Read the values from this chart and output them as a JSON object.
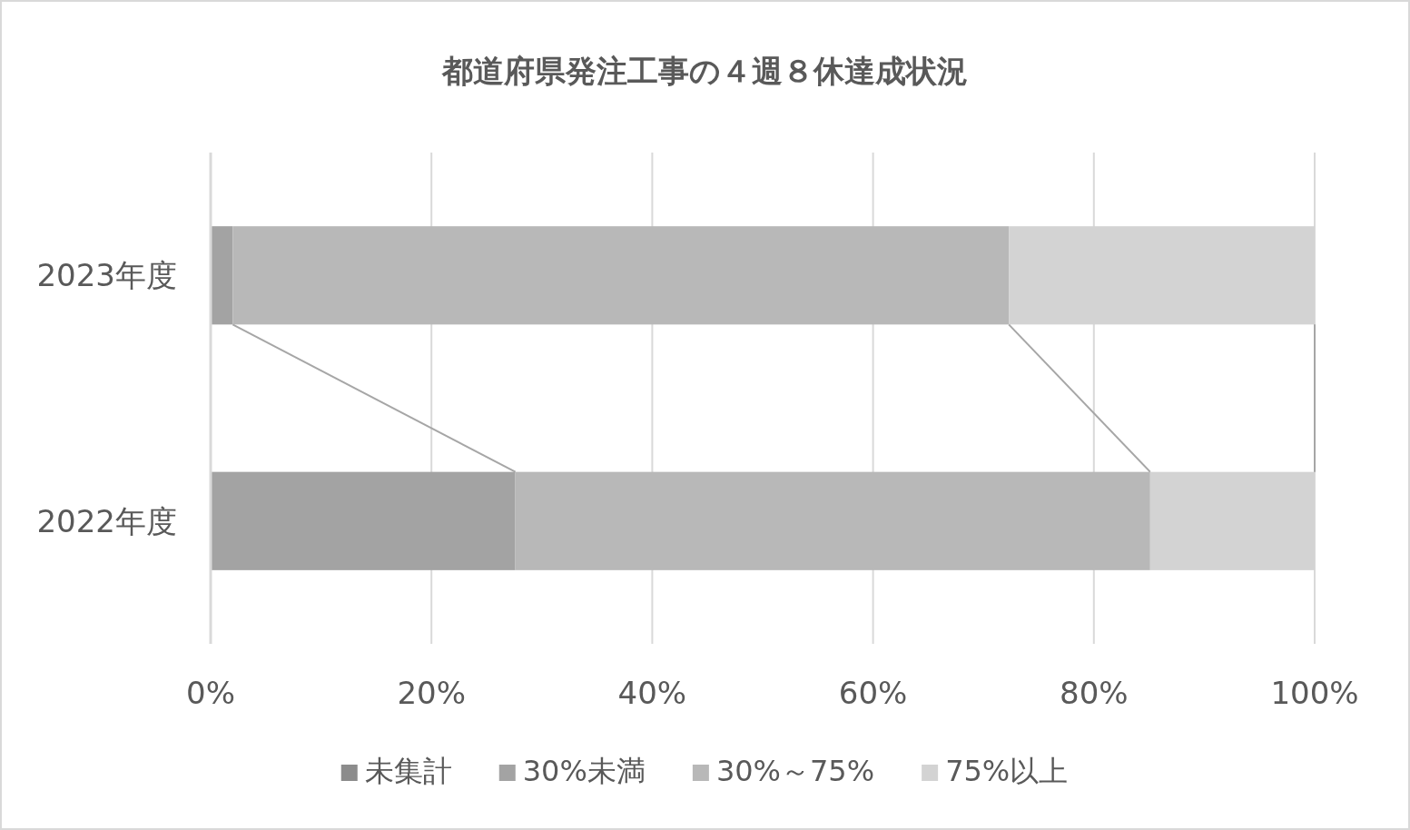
{
  "chart_data": {
    "type": "bar",
    "orientation": "horizontal",
    "stacked": true,
    "title": "都道府県発注工事の４週８休達成状況",
    "categories": [
      "2023年度",
      "2022年度"
    ],
    "series": [
      {
        "name": "未集計",
        "color": "#8c8c8c",
        "values": [
          0,
          0
        ]
      },
      {
        "name": "30%未満",
        "color": "#a3a3a3",
        "values": [
          2.0,
          27.6
        ]
      },
      {
        "name": "30%～75%",
        "color": "#b8b8b8",
        "values": [
          70.3,
          57.5
        ]
      },
      {
        "name": "75%以上",
        "color": "#d3d3d3",
        "values": [
          27.7,
          14.9
        ]
      }
    ],
    "xlim": [
      0,
      100
    ],
    "xticks": [
      {
        "value": 0,
        "label": "0%"
      },
      {
        "value": 20,
        "label": "20%"
      },
      {
        "value": 40,
        "label": "40%"
      },
      {
        "value": 60,
        "label": "60%"
      },
      {
        "value": 80,
        "label": "80%"
      },
      {
        "value": 100,
        "label": "100%"
      }
    ],
    "grid": "x",
    "legend": "bottom"
  }
}
